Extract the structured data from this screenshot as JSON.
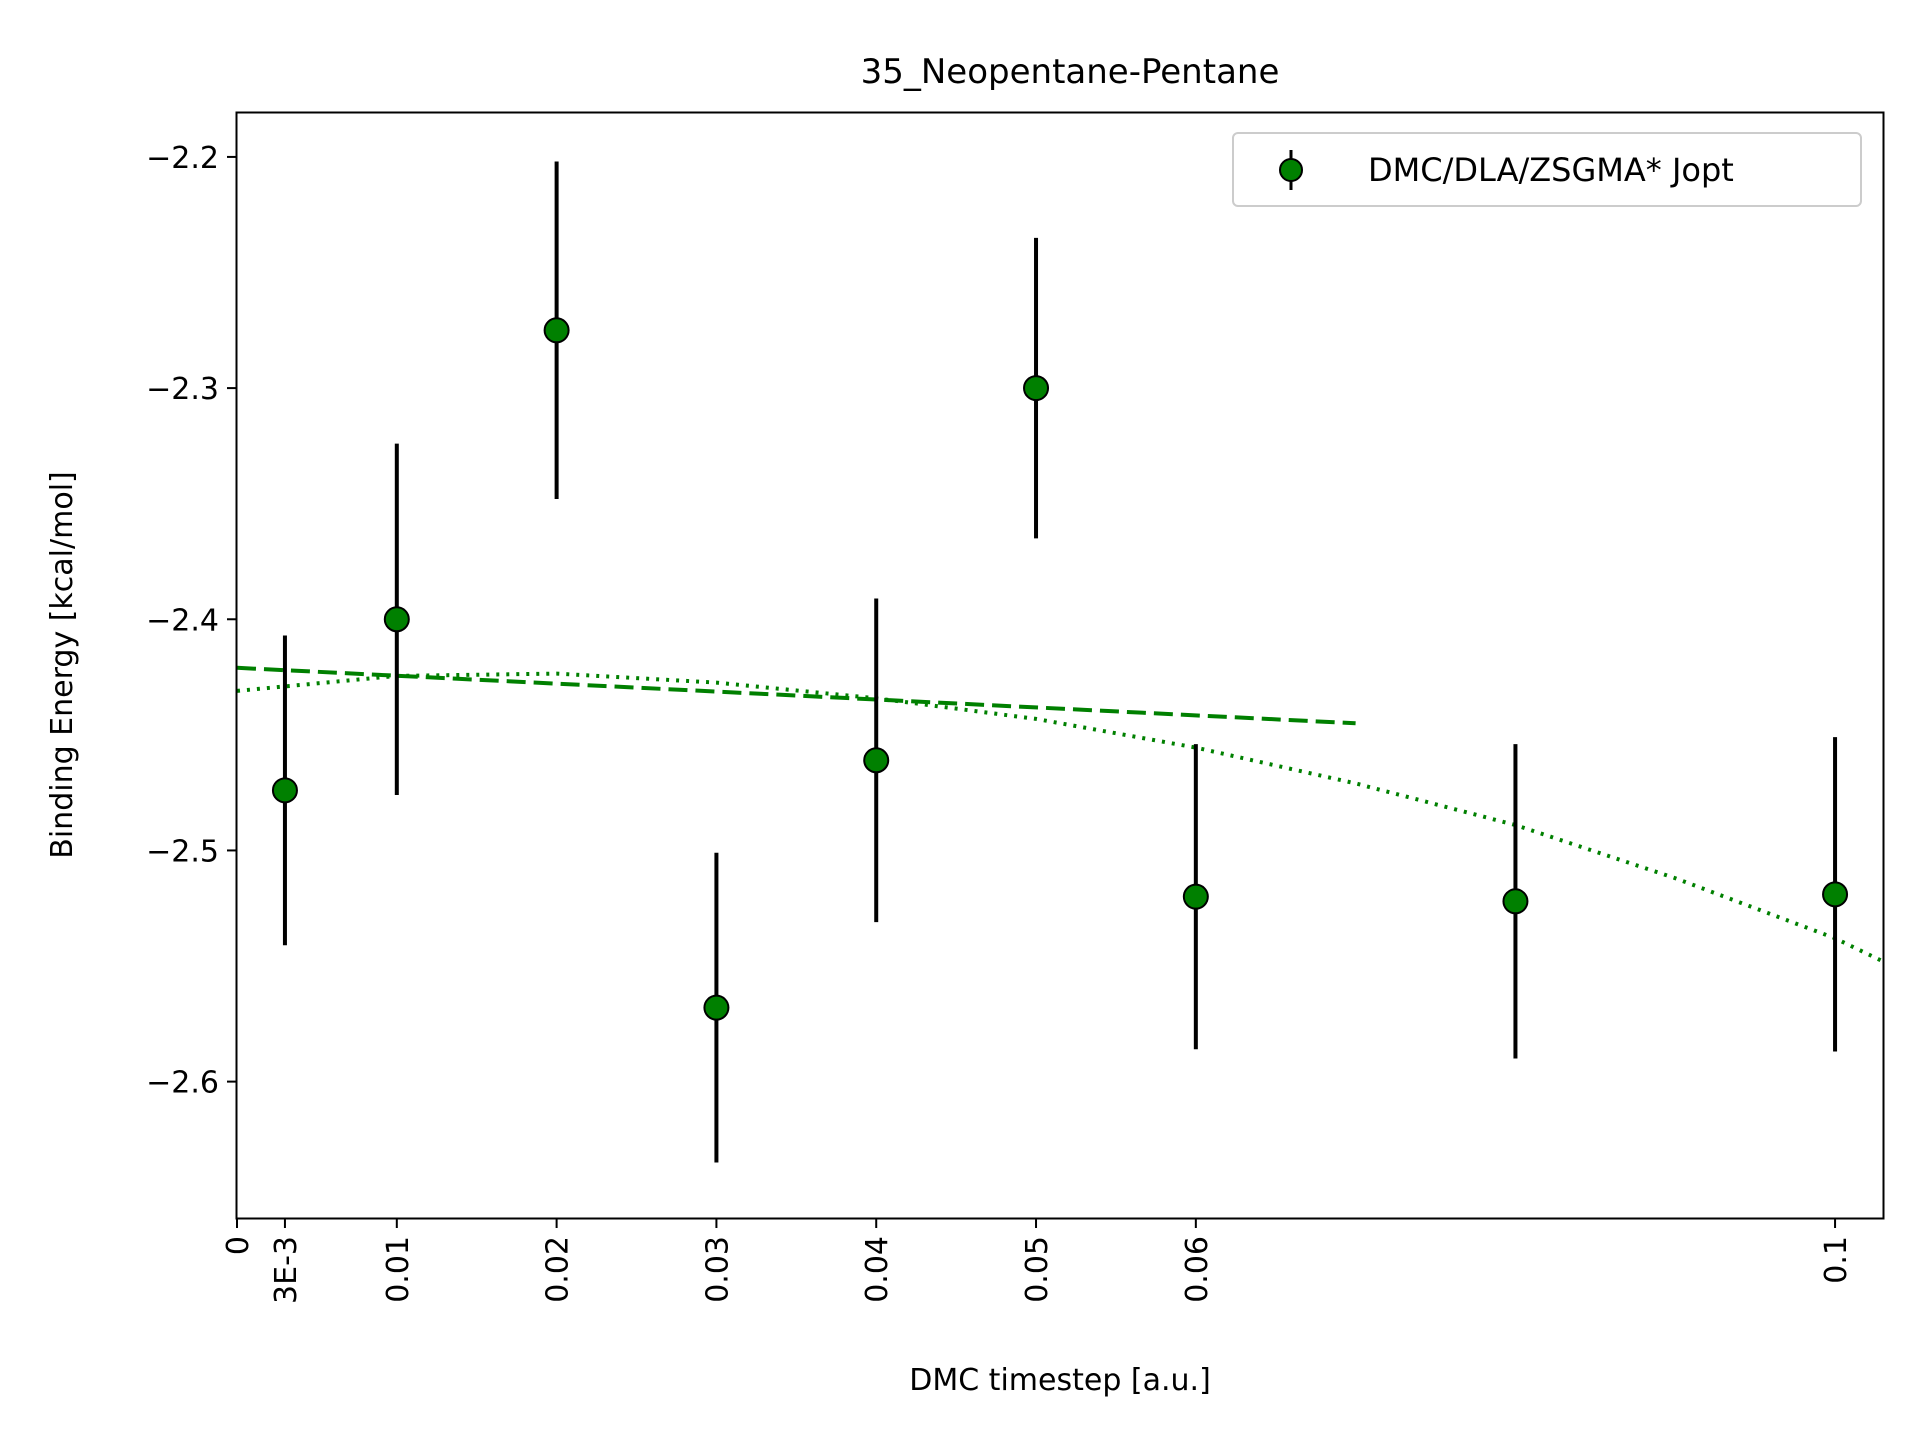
{
  "chart_data": {
    "type": "scatter",
    "title": "35_Neopentane-Pentane",
    "xlabel": "DMC timestep [a.u.]",
    "ylabel": "Binding Energy [kcal/mol]",
    "xlim": [
      0,
      0.103
    ],
    "ylim": [
      -2.659,
      -2.181
    ],
    "x_ticks": [
      {
        "value": 0,
        "label": "0"
      },
      {
        "value": 0.003,
        "label": "3E-3"
      },
      {
        "value": 0.01,
        "label": "0.01"
      },
      {
        "value": 0.02,
        "label": "0.02"
      },
      {
        "value": 0.03,
        "label": "0.03"
      },
      {
        "value": 0.04,
        "label": "0.04"
      },
      {
        "value": 0.05,
        "label": "0.05"
      },
      {
        "value": 0.06,
        "label": "0.06"
      },
      {
        "value": 0.1,
        "label": "0.1"
      }
    ],
    "y_ticks": [
      {
        "value": -2.2,
        "label": "−2.2"
      },
      {
        "value": -2.3,
        "label": "−2.3"
      },
      {
        "value": -2.4,
        "label": "−2.4"
      },
      {
        "value": -2.5,
        "label": "−2.5"
      },
      {
        "value": -2.6,
        "label": "−2.6"
      }
    ],
    "grid": false,
    "legend_position": "top-right",
    "series": [
      {
        "name": "DMC/DLA/ZSGMA* Jopt",
        "color": "#008000",
        "marker_edge": "#000000",
        "errorbar_color": "#000000",
        "points": [
          {
            "x": 0.003,
            "y": -2.474,
            "err": 0.067
          },
          {
            "x": 0.01,
            "y": -2.4,
            "err": 0.076
          },
          {
            "x": 0.02,
            "y": -2.275,
            "err": 0.073
          },
          {
            "x": 0.03,
            "y": -2.568,
            "err": 0.067
          },
          {
            "x": 0.04,
            "y": -2.461,
            "err": 0.07
          },
          {
            "x": 0.05,
            "y": -2.3,
            "err": 0.065
          },
          {
            "x": 0.06,
            "y": -2.52,
            "err": 0.066
          },
          {
            "x": 0.08,
            "y": -2.522,
            "err": 0.068
          },
          {
            "x": 0.1,
            "y": -2.519,
            "err": 0.068
          }
        ]
      }
    ],
    "fit_lines": [
      {
        "style": "dashed",
        "color": "#008000",
        "x": [
          0,
          0.07
        ],
        "y": [
          -2.421,
          -2.445
        ]
      },
      {
        "style": "dotted",
        "color": "#008000",
        "x": [
          0,
          0.01,
          0.02,
          0.03,
          0.04,
          0.05,
          0.06,
          0.07,
          0.08,
          0.09,
          0.1,
          0.103
        ],
        "y": [
          -2.431,
          -2.4245,
          -2.4235,
          -2.4274,
          -2.4342,
          -2.4431,
          -2.4555,
          -2.471,
          -2.489,
          -2.512,
          -2.538,
          -2.548
        ]
      }
    ]
  }
}
